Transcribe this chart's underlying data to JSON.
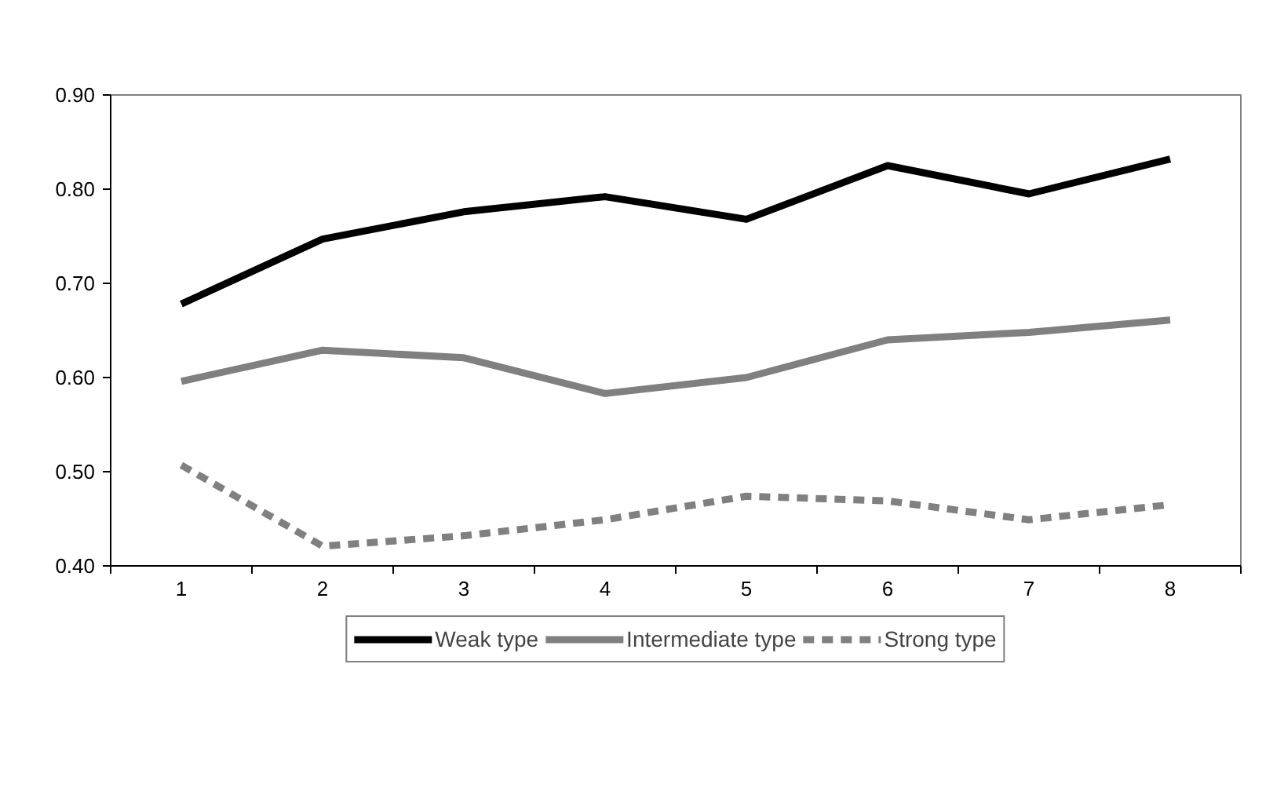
{
  "chart_data": {
    "type": "line",
    "categories": [
      "1",
      "2",
      "3",
      "4",
      "5",
      "6",
      "7",
      "8"
    ],
    "series": [
      {
        "name": "Weak type",
        "color": "#000000",
        "line_style": "solid",
        "values": [
          0.678,
          0.747,
          0.776,
          0.792,
          0.768,
          0.825,
          0.795,
          0.832
        ]
      },
      {
        "name": "Intermediate type",
        "color": "#808080",
        "line_style": "solid",
        "values": [
          0.596,
          0.629,
          0.621,
          0.583,
          0.6,
          0.64,
          0.648,
          0.661
        ]
      },
      {
        "name": "Strong type",
        "color": "#808080",
        "line_style": "dashed",
        "values": [
          0.507,
          0.421,
          0.432,
          0.449,
          0.474,
          0.469,
          0.449,
          0.465
        ]
      }
    ],
    "ylim": [
      0.4,
      0.9
    ],
    "yticks": [
      {
        "value": 0.4,
        "label": "0.40"
      },
      {
        "value": 0.5,
        "label": "0.50"
      },
      {
        "value": 0.6,
        "label": "0.60"
      },
      {
        "value": 0.7,
        "label": "0.70"
      },
      {
        "value": 0.8,
        "label": "0.80"
      },
      {
        "value": 0.9,
        "label": "0.90"
      }
    ],
    "grid": false,
    "legend": "bottom",
    "marker": "none"
  }
}
